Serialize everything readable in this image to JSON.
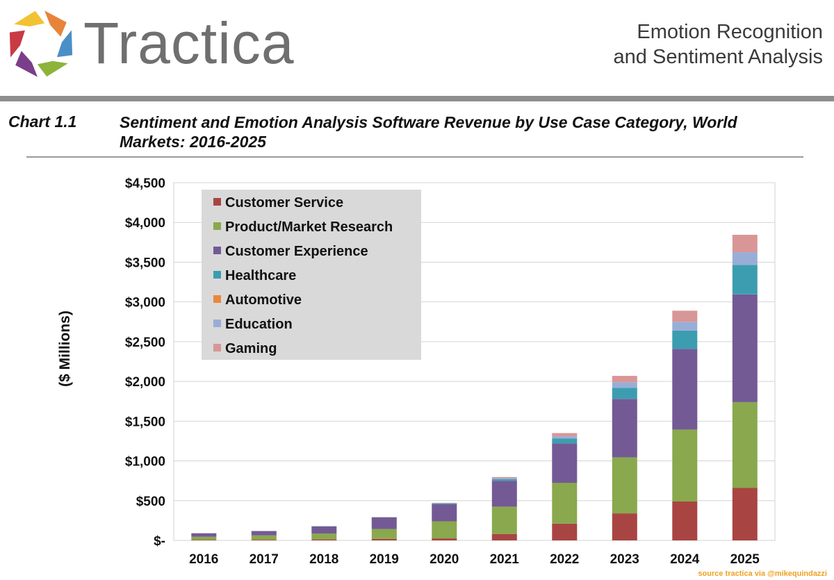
{
  "header": {
    "brand": "Tractica",
    "report_title_line1": "Emotion Recognition",
    "report_title_line2": "and Sentiment Analysis"
  },
  "chart_label": "Chart 1.1",
  "chart_title_line1": "Sentiment and Emotion Analysis Software Revenue by Use Case Category, World",
  "chart_title_line2": "Markets: 2016-2025",
  "source_note": "source tractica via @mikequindazzi",
  "colors": {
    "logo": [
      "#e8833a",
      "#4a8fc8",
      "#8db33a",
      "#7a3e8a",
      "#c93a45",
      "#f2c233"
    ]
  },
  "chart_data": {
    "type": "bar",
    "stacked": true,
    "title": "Sentiment and Emotion Analysis Software Revenue by Use Case Category, World Markets: 2016-2025",
    "ylabel": "($ Millions)",
    "xlabel": "",
    "ylim": [
      0,
      4500
    ],
    "yticks": [
      0,
      500,
      1000,
      1500,
      2000,
      2500,
      3000,
      3500,
      4000,
      4500
    ],
    "ytick_labels": [
      "$-",
      "$500",
      "$1,000",
      "$1,500",
      "$2,000",
      "$2,500",
      "$3,000",
      "$3,500",
      "$4,000",
      "$4,500"
    ],
    "grid": true,
    "legend_position": "top-left",
    "categories": [
      "2016",
      "2017",
      "2018",
      "2019",
      "2020",
      "2021",
      "2022",
      "2023",
      "2024",
      "2025"
    ],
    "series": [
      {
        "name": "Customer Service",
        "color": "#a84543",
        "values": [
          5,
          8,
          12,
          18,
          25,
          80,
          210,
          340,
          490,
          660
        ]
      },
      {
        "name": "Product/Market Research",
        "color": "#8aa84d",
        "values": [
          40,
          55,
          75,
          125,
          215,
          345,
          515,
          705,
          905,
          1080
        ]
      },
      {
        "name": "Customer Experience",
        "color": "#735a95",
        "values": [
          45,
          55,
          90,
          145,
          215,
          325,
          495,
          735,
          1015,
          1355
        ]
      },
      {
        "name": "Healthcare",
        "color": "#3d9db0",
        "values": [
          0,
          0,
          2,
          3,
          8,
          20,
          60,
          140,
          230,
          370
        ]
      },
      {
        "name": "Automotive",
        "color": "#e8883e",
        "values": [
          0,
          0,
          0,
          0,
          0,
          0,
          0,
          0,
          0,
          0
        ]
      },
      {
        "name": "Education",
        "color": "#98aed6",
        "values": [
          0,
          0,
          0,
          2,
          5,
          12,
          30,
          70,
          110,
          160
        ]
      },
      {
        "name": "Gaming",
        "color": "#d99696",
        "values": [
          0,
          0,
          0,
          2,
          5,
          15,
          40,
          80,
          140,
          220
        ]
      }
    ]
  }
}
